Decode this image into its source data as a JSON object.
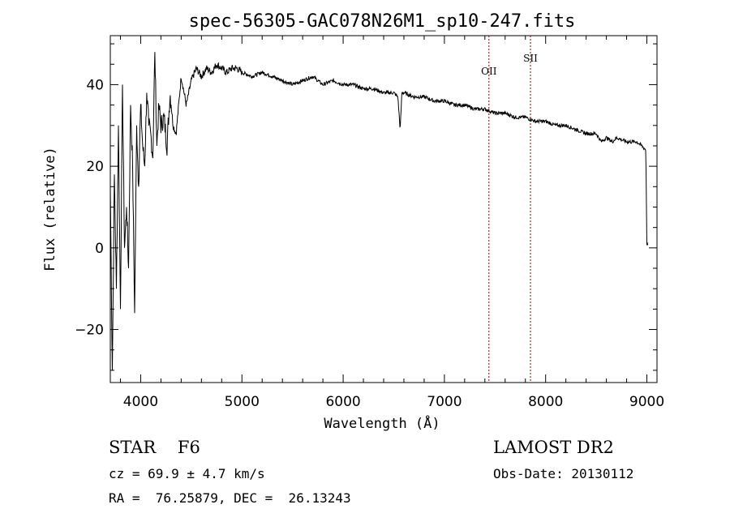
{
  "chart_data": {
    "type": "line",
    "title": "spec-56305-GAC078N26M1_sp10-247.fits",
    "xlabel": "Wavelength (Å)",
    "ylabel": "Flux (relative)",
    "xlim": [
      3700,
      9100
    ],
    "ylim": [
      -33,
      52
    ],
    "x_ticks": [
      4000,
      5000,
      6000,
      7000,
      8000,
      9000
    ],
    "y_ticks": [
      -20,
      0,
      20,
      40
    ],
    "grid": false,
    "series": [
      {
        "x": [
          3700,
          3720,
          3740,
          3760,
          3780,
          3800,
          3820,
          3840,
          3860,
          3880,
          3900,
          3920,
          3940,
          3960,
          3980,
          4000,
          4020,
          4040,
          4060,
          4080,
          4100,
          4120,
          4140,
          4160,
          4180,
          4200,
          4230,
          4260,
          4290,
          4320,
          4350,
          4400,
          4450,
          4500,
          4550,
          4600,
          4650,
          4700,
          4750,
          4800,
          4850,
          4900,
          4950,
          5000,
          5100,
          5200,
          5300,
          5400,
          5500,
          5600,
          5700,
          5800,
          5900,
          6000,
          6100,
          6200,
          6300,
          6400,
          6500,
          6540,
          6563,
          6580,
          6600,
          6700,
          6800,
          6900,
          7000,
          7100,
          7200,
          7300,
          7400,
          7500,
          7600,
          7700,
          7800,
          7900,
          8000,
          8100,
          8200,
          8300,
          8400,
          8500,
          8550,
          8600,
          8660,
          8700,
          8800,
          8900,
          8950,
          8990,
          9000,
          9010
        ],
        "y": [
          15,
          -30,
          18,
          -10,
          30,
          -15,
          40,
          0,
          10,
          -5,
          35,
          20,
          -16,
          30,
          15,
          35,
          25,
          20,
          38,
          30,
          28,
          22,
          48,
          25,
          35,
          30,
          32,
          25,
          38,
          30,
          28,
          42,
          35,
          41,
          44,
          42,
          44,
          43,
          45,
          44,
          43,
          44,
          44,
          43,
          42,
          43,
          42,
          41,
          40,
          41,
          42,
          40,
          41,
          40,
          40,
          39,
          39,
          38,
          38,
          37,
          29,
          38,
          38,
          37,
          37,
          36,
          36,
          35,
          35,
          34,
          34,
          33,
          33,
          32,
          32,
          31,
          31,
          30,
          30,
          29,
          28,
          28,
          26,
          27,
          26,
          27,
          26,
          26,
          25,
          24,
          1,
          1
        ]
      }
    ],
    "annotations": [
      {
        "label": "OII",
        "x": 7440
      },
      {
        "label": "SII",
        "x": 7850
      }
    ],
    "line_color": "#8b0000"
  },
  "info": {
    "class_text": "STAR    F6",
    "cz_text": "cz = 69.9 ± 4.7 km/s",
    "coords_text": "RA =  76.25879, DEC =  26.13243",
    "survey_text": "LAMOST DR2",
    "obs_date_text": "Obs-Date: 20130112"
  }
}
